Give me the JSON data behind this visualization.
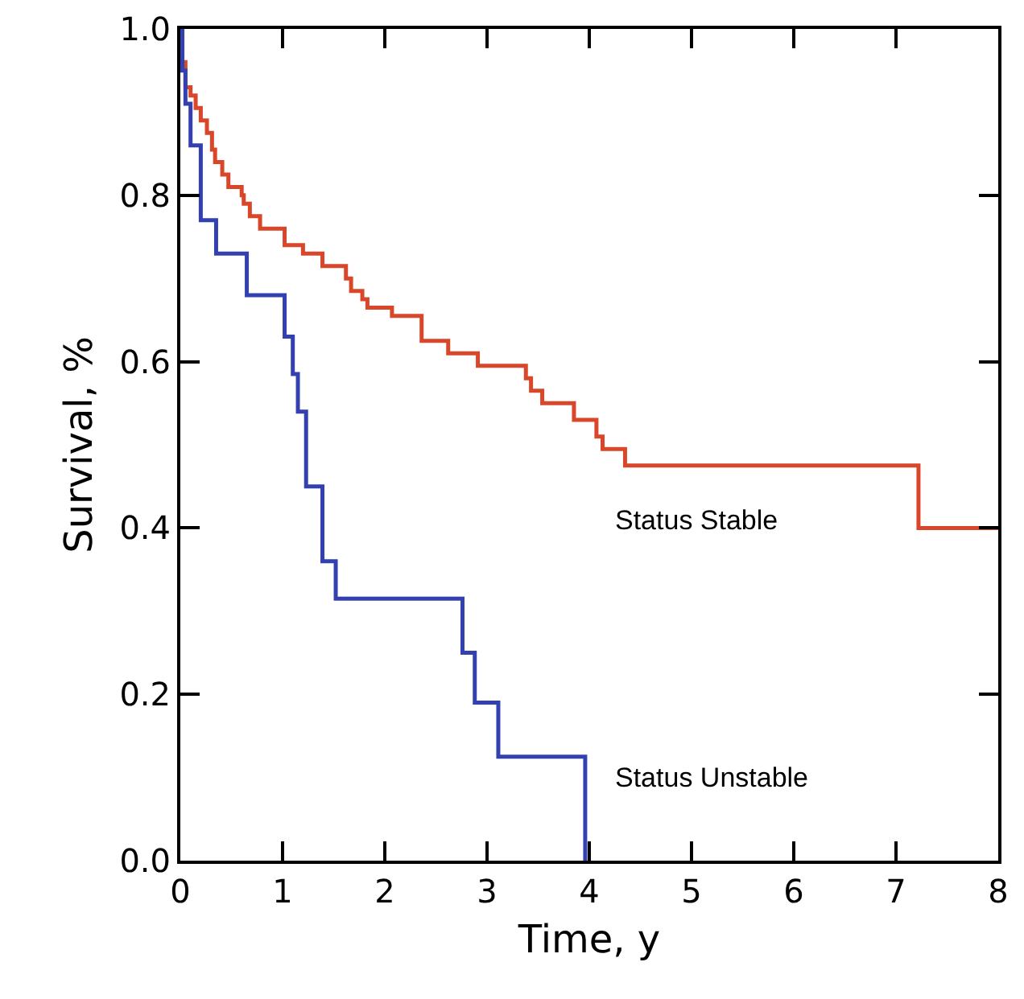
{
  "chart_data": {
    "type": "step",
    "xlabel": "Time, y",
    "ylabel": "Survival, %",
    "series": [
      {
        "name": "Status Stable",
        "color": "#d9472b",
        "x": [
          0,
          0.02,
          0.05,
          0.1,
          0.15,
          0.2,
          0.26,
          0.31,
          0.34,
          0.41,
          0.47,
          0.6,
          0.62,
          0.68,
          0.78,
          1.02,
          1.2,
          1.39,
          1.62,
          1.67,
          1.78,
          1.83,
          2.07,
          2.36,
          2.62,
          2.91,
          3.38,
          3.43,
          3.54,
          3.85,
          4.07,
          4.13,
          4.35,
          7.22,
          8
        ],
        "values": [
          1.0,
          0.96,
          0.93,
          0.92,
          0.905,
          0.89,
          0.875,
          0.855,
          0.84,
          0.825,
          0.81,
          0.8,
          0.79,
          0.775,
          0.76,
          0.74,
          0.73,
          0.715,
          0.7,
          0.685,
          0.675,
          0.665,
          0.655,
          0.625,
          0.61,
          0.595,
          0.58,
          0.565,
          0.55,
          0.53,
          0.51,
          0.495,
          0.475,
          0.4,
          0.4
        ]
      },
      {
        "name": "Status Unstable",
        "color": "#3341b0",
        "x": [
          0,
          0.02,
          0.05,
          0.1,
          0.2,
          0.35,
          0.65,
          1.02,
          1.1,
          1.15,
          1.23,
          1.39,
          1.52,
          2.76,
          2.88,
          3.11,
          3.96
        ],
        "values": [
          1.0,
          0.95,
          0.91,
          0.86,
          0.77,
          0.73,
          0.68,
          0.63,
          0.585,
          0.54,
          0.45,
          0.36,
          0.315,
          0.25,
          0.19,
          0.125,
          0
        ]
      }
    ],
    "xlim": [
      0,
      8
    ],
    "xticks": [
      0,
      1,
      2,
      3,
      4,
      5,
      6,
      7,
      8
    ],
    "ylim": [
      0,
      1
    ],
    "yticks": [
      {
        "value": 0,
        "label": "0.0"
      },
      {
        "value": 0.2,
        "label": "0.2"
      },
      {
        "value": 0.4,
        "label": "0.4"
      },
      {
        "value": 0.6,
        "label": "0.6"
      },
      {
        "value": 0.8,
        "label": "0.8"
      },
      {
        "value": 1,
        "label": "1.0"
      }
    ],
    "grid": false,
    "legend": false,
    "marker": "none",
    "line_style": "solid"
  }
}
